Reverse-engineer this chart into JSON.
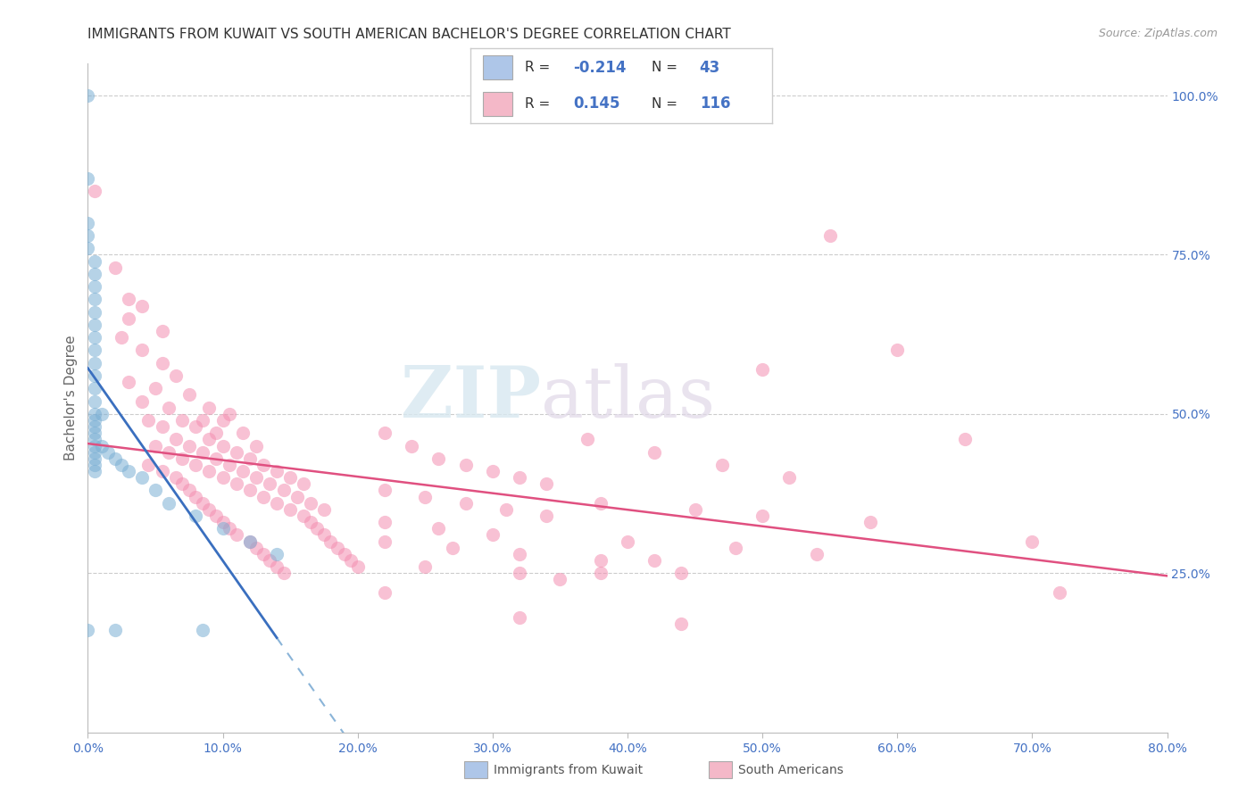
{
  "title": "IMMIGRANTS FROM KUWAIT VS SOUTH AMERICAN BACHELOR'S DEGREE CORRELATION CHART",
  "source": "Source: ZipAtlas.com",
  "ylabel": "Bachelor's Degree",
  "ylabel_right_ticks": [
    "100.0%",
    "75.0%",
    "50.0%",
    "25.0%"
  ],
  "ylabel_right_vals": [
    1.0,
    0.75,
    0.5,
    0.25
  ],
  "blue_color": "#aec6e8",
  "pink_color": "#f4b8c8",
  "blue_scatter_color": "#7bafd4",
  "pink_scatter_color": "#f48fb1",
  "watermark_zip": "ZIP",
  "watermark_atlas": "atlas",
  "xmin": 0.0,
  "xmax": 0.8,
  "ymin": 0.0,
  "ymax": 1.05,
  "xtick_vals": [
    0.0,
    0.1,
    0.2,
    0.3,
    0.4,
    0.5,
    0.6,
    0.7,
    0.8
  ],
  "xtick_labels": [
    "0.0%",
    "10.0%",
    "20.0%",
    "30.0%",
    "40.0%",
    "50.0%",
    "60.0%",
    "70.0%",
    "80.0%"
  ],
  "blue_points": [
    [
      0.0,
      1.0
    ],
    [
      0.0,
      0.87
    ],
    [
      0.0,
      0.8
    ],
    [
      0.0,
      0.78
    ],
    [
      0.0,
      0.76
    ],
    [
      0.005,
      0.74
    ],
    [
      0.005,
      0.72
    ],
    [
      0.005,
      0.7
    ],
    [
      0.005,
      0.68
    ],
    [
      0.005,
      0.66
    ],
    [
      0.005,
      0.64
    ],
    [
      0.005,
      0.62
    ],
    [
      0.005,
      0.6
    ],
    [
      0.005,
      0.58
    ],
    [
      0.005,
      0.56
    ],
    [
      0.005,
      0.54
    ],
    [
      0.005,
      0.52
    ],
    [
      0.005,
      0.5
    ],
    [
      0.005,
      0.49
    ],
    [
      0.005,
      0.48
    ],
    [
      0.005,
      0.47
    ],
    [
      0.005,
      0.46
    ],
    [
      0.005,
      0.45
    ],
    [
      0.005,
      0.44
    ],
    [
      0.005,
      0.43
    ],
    [
      0.005,
      0.42
    ],
    [
      0.005,
      0.41
    ],
    [
      0.01,
      0.5
    ],
    [
      0.01,
      0.45
    ],
    [
      0.015,
      0.44
    ],
    [
      0.02,
      0.43
    ],
    [
      0.025,
      0.42
    ],
    [
      0.03,
      0.41
    ],
    [
      0.04,
      0.4
    ],
    [
      0.05,
      0.38
    ],
    [
      0.06,
      0.36
    ],
    [
      0.02,
      0.16
    ],
    [
      0.085,
      0.16
    ],
    [
      0.0,
      0.16
    ],
    [
      0.08,
      0.34
    ],
    [
      0.1,
      0.32
    ],
    [
      0.12,
      0.3
    ],
    [
      0.14,
      0.28
    ]
  ],
  "pink_points": [
    [
      0.005,
      0.85
    ],
    [
      0.02,
      0.73
    ],
    [
      0.03,
      0.68
    ],
    [
      0.04,
      0.67
    ],
    [
      0.03,
      0.65
    ],
    [
      0.055,
      0.63
    ],
    [
      0.025,
      0.62
    ],
    [
      0.04,
      0.6
    ],
    [
      0.055,
      0.58
    ],
    [
      0.065,
      0.56
    ],
    [
      0.03,
      0.55
    ],
    [
      0.05,
      0.54
    ],
    [
      0.075,
      0.53
    ],
    [
      0.04,
      0.52
    ],
    [
      0.06,
      0.51
    ],
    [
      0.09,
      0.51
    ],
    [
      0.105,
      0.5
    ],
    [
      0.045,
      0.49
    ],
    [
      0.07,
      0.49
    ],
    [
      0.085,
      0.49
    ],
    [
      0.1,
      0.49
    ],
    [
      0.055,
      0.48
    ],
    [
      0.08,
      0.48
    ],
    [
      0.095,
      0.47
    ],
    [
      0.115,
      0.47
    ],
    [
      0.065,
      0.46
    ],
    [
      0.09,
      0.46
    ],
    [
      0.05,
      0.45
    ],
    [
      0.075,
      0.45
    ],
    [
      0.1,
      0.45
    ],
    [
      0.125,
      0.45
    ],
    [
      0.06,
      0.44
    ],
    [
      0.085,
      0.44
    ],
    [
      0.11,
      0.44
    ],
    [
      0.07,
      0.43
    ],
    [
      0.095,
      0.43
    ],
    [
      0.12,
      0.43
    ],
    [
      0.045,
      0.42
    ],
    [
      0.08,
      0.42
    ],
    [
      0.105,
      0.42
    ],
    [
      0.13,
      0.42
    ],
    [
      0.055,
      0.41
    ],
    [
      0.09,
      0.41
    ],
    [
      0.115,
      0.41
    ],
    [
      0.14,
      0.41
    ],
    [
      0.065,
      0.4
    ],
    [
      0.1,
      0.4
    ],
    [
      0.125,
      0.4
    ],
    [
      0.15,
      0.4
    ],
    [
      0.07,
      0.39
    ],
    [
      0.11,
      0.39
    ],
    [
      0.135,
      0.39
    ],
    [
      0.16,
      0.39
    ],
    [
      0.075,
      0.38
    ],
    [
      0.12,
      0.38
    ],
    [
      0.145,
      0.38
    ],
    [
      0.08,
      0.37
    ],
    [
      0.13,
      0.37
    ],
    [
      0.155,
      0.37
    ],
    [
      0.085,
      0.36
    ],
    [
      0.14,
      0.36
    ],
    [
      0.165,
      0.36
    ],
    [
      0.09,
      0.35
    ],
    [
      0.15,
      0.35
    ],
    [
      0.175,
      0.35
    ],
    [
      0.095,
      0.34
    ],
    [
      0.16,
      0.34
    ],
    [
      0.1,
      0.33
    ],
    [
      0.165,
      0.33
    ],
    [
      0.105,
      0.32
    ],
    [
      0.17,
      0.32
    ],
    [
      0.11,
      0.31
    ],
    [
      0.175,
      0.31
    ],
    [
      0.12,
      0.3
    ],
    [
      0.18,
      0.3
    ],
    [
      0.125,
      0.29
    ],
    [
      0.185,
      0.29
    ],
    [
      0.13,
      0.28
    ],
    [
      0.19,
      0.28
    ],
    [
      0.135,
      0.27
    ],
    [
      0.195,
      0.27
    ],
    [
      0.14,
      0.26
    ],
    [
      0.2,
      0.26
    ],
    [
      0.145,
      0.25
    ],
    [
      0.55,
      0.78
    ],
    [
      0.22,
      0.47
    ],
    [
      0.24,
      0.45
    ],
    [
      0.26,
      0.43
    ],
    [
      0.28,
      0.42
    ],
    [
      0.3,
      0.41
    ],
    [
      0.32,
      0.4
    ],
    [
      0.34,
      0.39
    ],
    [
      0.22,
      0.38
    ],
    [
      0.25,
      0.37
    ],
    [
      0.28,
      0.36
    ],
    [
      0.31,
      0.35
    ],
    [
      0.34,
      0.34
    ],
    [
      0.22,
      0.33
    ],
    [
      0.26,
      0.32
    ],
    [
      0.3,
      0.31
    ],
    [
      0.22,
      0.3
    ],
    [
      0.27,
      0.29
    ],
    [
      0.32,
      0.28
    ],
    [
      0.38,
      0.27
    ],
    [
      0.42,
      0.27
    ],
    [
      0.25,
      0.26
    ],
    [
      0.32,
      0.25
    ],
    [
      0.38,
      0.25
    ],
    [
      0.44,
      0.25
    ],
    [
      0.35,
      0.24
    ],
    [
      0.5,
      0.57
    ],
    [
      0.37,
      0.46
    ],
    [
      0.42,
      0.44
    ],
    [
      0.47,
      0.42
    ],
    [
      0.52,
      0.4
    ],
    [
      0.38,
      0.36
    ],
    [
      0.45,
      0.35
    ],
    [
      0.5,
      0.34
    ],
    [
      0.58,
      0.33
    ],
    [
      0.4,
      0.3
    ],
    [
      0.48,
      0.29
    ],
    [
      0.54,
      0.28
    ],
    [
      0.22,
      0.22
    ],
    [
      0.32,
      0.18
    ],
    [
      0.44,
      0.17
    ],
    [
      0.6,
      0.6
    ],
    [
      0.65,
      0.46
    ],
    [
      0.7,
      0.3
    ],
    [
      0.72,
      0.22
    ]
  ]
}
